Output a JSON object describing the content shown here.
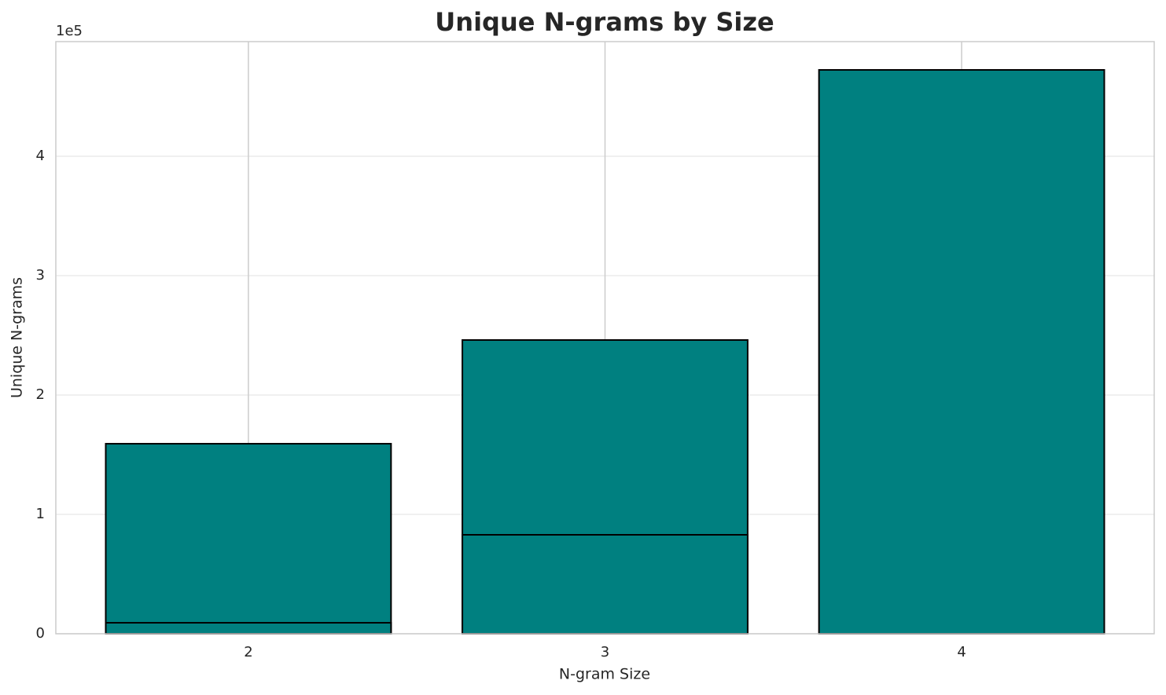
{
  "chart_data": {
    "type": "bar",
    "barmode": "overlay",
    "title": "Unique N-grams by Size",
    "xlabel": "N-gram Size",
    "ylabel": "Unique N-grams",
    "y_offset_label": "1e5",
    "x": [
      2,
      3,
      4
    ],
    "xlim": [
      1.46,
      4.54
    ],
    "xticks": [
      2,
      3,
      4
    ],
    "ylim": [
      0,
      496100
    ],
    "yticks": [
      {
        "value": 0,
        "label": "0"
      },
      {
        "value": 100000,
        "label": "1"
      },
      {
        "value": 200000,
        "label": "2"
      },
      {
        "value": 300000,
        "label": "3"
      },
      {
        "value": 400000,
        "label": "4"
      }
    ],
    "edgecolor": "#000000",
    "grid": true,
    "series": [
      {
        "color": "#008080",
        "values": [
          159200,
          246100,
          472400
        ]
      },
      {
        "color": "#008080",
        "values": [
          9200,
          82900,
          null
        ]
      }
    ]
  }
}
